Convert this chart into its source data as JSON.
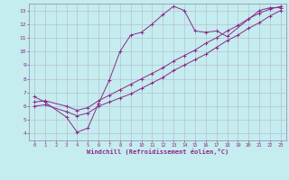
{
  "xlabel": "Windchill (Refroidissement éolien,°C)",
  "xlim": [
    -0.5,
    23.5
  ],
  "ylim": [
    3.5,
    13.5
  ],
  "xticks": [
    0,
    1,
    2,
    3,
    4,
    5,
    6,
    7,
    8,
    9,
    10,
    11,
    12,
    13,
    14,
    15,
    16,
    17,
    18,
    19,
    20,
    21,
    22,
    23
  ],
  "yticks": [
    4,
    5,
    6,
    7,
    8,
    9,
    10,
    11,
    12,
    13
  ],
  "bg_color": "#c5ecee",
  "grid_color": "#b0b8d0",
  "line_color": "#8b2a8b",
  "line1_x": [
    0,
    1,
    3,
    4,
    5,
    6,
    7,
    8,
    9,
    10,
    11,
    12,
    13,
    14,
    15,
    16,
    17,
    18,
    21,
    22,
    23
  ],
  "line1_y": [
    6.7,
    6.3,
    5.2,
    4.1,
    4.4,
    6.2,
    7.9,
    10.0,
    11.2,
    11.4,
    12.0,
    12.7,
    13.3,
    13.0,
    11.5,
    11.4,
    11.5,
    11.1,
    13.0,
    13.2,
    13.2
  ],
  "line2_x": [
    0,
    1,
    3,
    4,
    5,
    6,
    7,
    8,
    9,
    10,
    11,
    12,
    13,
    14,
    15,
    16,
    17,
    18,
    19,
    20,
    21,
    22,
    23
  ],
  "line2_y": [
    6.0,
    6.1,
    5.6,
    5.3,
    5.5,
    6.0,
    6.3,
    6.6,
    6.9,
    7.3,
    7.7,
    8.1,
    8.6,
    9.0,
    9.4,
    9.8,
    10.3,
    10.8,
    11.2,
    11.7,
    12.1,
    12.6,
    13.0
  ],
  "line3_x": [
    0,
    1,
    3,
    4,
    5,
    6,
    7,
    8,
    9,
    10,
    11,
    12,
    13,
    14,
    15,
    16,
    17,
    18,
    19,
    20,
    21,
    22,
    23
  ],
  "line3_y": [
    6.3,
    6.4,
    6.0,
    5.7,
    5.9,
    6.4,
    6.8,
    7.2,
    7.6,
    8.0,
    8.4,
    8.8,
    9.3,
    9.7,
    10.1,
    10.6,
    11.0,
    11.5,
    11.9,
    12.4,
    12.8,
    13.1,
    13.3
  ]
}
